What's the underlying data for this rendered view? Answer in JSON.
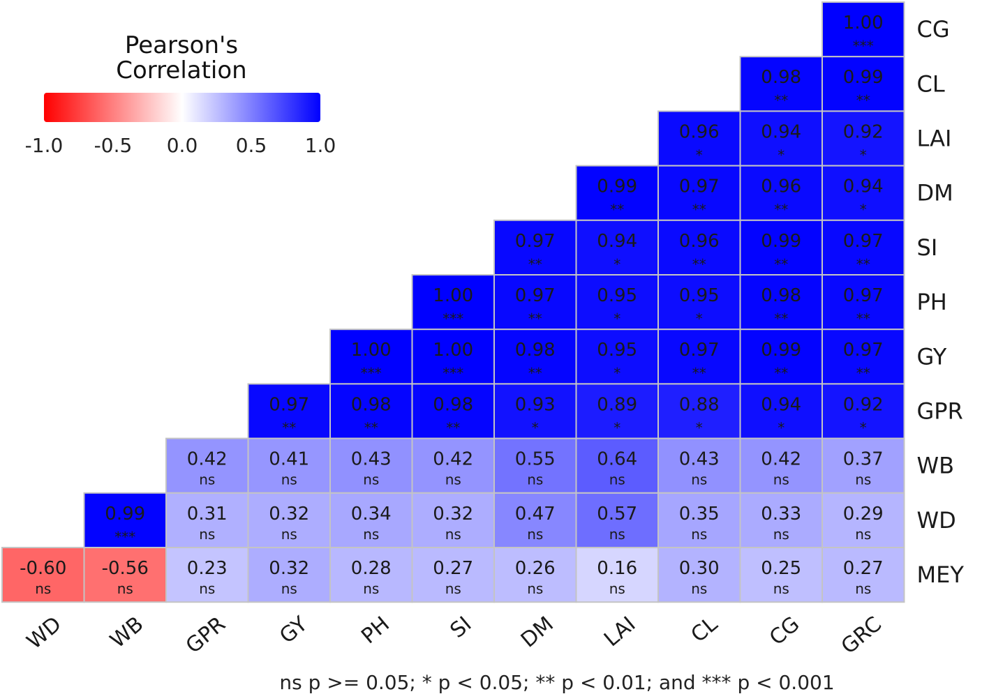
{
  "chart_data": {
    "type": "heatmap",
    "legend": {
      "title_line1": "Pearson's",
      "title_line2": "Correlation",
      "ticks": [
        "-1.0",
        "-0.5",
        "0.0",
        "0.5",
        "1.0"
      ],
      "range": [
        -1,
        1
      ],
      "colors": {
        "low": "#ff0000",
        "mid": "#ffffff",
        "high": "#0000ff"
      },
      "placement": "top-left"
    },
    "x_labels": [
      "WD",
      "WB",
      "GPR",
      "GY",
      "PH",
      "SI",
      "DM",
      "LAI",
      "CL",
      "CG",
      "GRC"
    ],
    "y_labels": [
      "CG",
      "CL",
      "LAI",
      "DM",
      "SI",
      "PH",
      "GY",
      "GPR",
      "WB",
      "WD",
      "MEY"
    ],
    "rows": [
      {
        "label": "CG",
        "start": 10,
        "values": [
          1.0
        ],
        "sig": [
          "***"
        ]
      },
      {
        "label": "CL",
        "start": 9,
        "values": [
          0.98,
          0.99
        ],
        "sig": [
          "**",
          "**"
        ]
      },
      {
        "label": "LAI",
        "start": 8,
        "values": [
          0.96,
          0.94,
          0.92
        ],
        "sig": [
          "*",
          "*",
          "*"
        ]
      },
      {
        "label": "DM",
        "start": 7,
        "values": [
          0.99,
          0.97,
          0.96,
          0.94
        ],
        "sig": [
          "**",
          "**",
          "**",
          "*"
        ]
      },
      {
        "label": "SI",
        "start": 6,
        "values": [
          0.97,
          0.94,
          0.96,
          0.99,
          0.97
        ],
        "sig": [
          "**",
          "*",
          "**",
          "**",
          "**"
        ]
      },
      {
        "label": "PH",
        "start": 5,
        "values": [
          1.0,
          0.97,
          0.95,
          0.95,
          0.98,
          0.97
        ],
        "sig": [
          "***",
          "**",
          "*",
          "*",
          "**",
          "**"
        ]
      },
      {
        "label": "GY",
        "start": 4,
        "values": [
          1.0,
          1.0,
          0.98,
          0.95,
          0.97,
          0.99,
          0.97
        ],
        "sig": [
          "***",
          "***",
          "**",
          "*",
          "**",
          "**",
          "**"
        ]
      },
      {
        "label": "GPR",
        "start": 3,
        "values": [
          0.97,
          0.98,
          0.98,
          0.93,
          0.89,
          0.88,
          0.94,
          0.92
        ],
        "sig": [
          "**",
          "**",
          "**",
          "*",
          "*",
          "*",
          "*",
          "*"
        ]
      },
      {
        "label": "WB",
        "start": 2,
        "values": [
          0.42,
          0.41,
          0.43,
          0.42,
          0.55,
          0.64,
          0.43,
          0.42,
          0.37
        ],
        "sig": [
          "ns",
          "ns",
          "ns",
          "ns",
          "ns",
          "ns",
          "ns",
          "ns",
          "ns"
        ]
      },
      {
        "label": "WD",
        "start": 1,
        "values": [
          0.99,
          0.31,
          0.32,
          0.34,
          0.32,
          0.47,
          0.57,
          0.35,
          0.33,
          0.29
        ],
        "sig": [
          "***",
          "ns",
          "ns",
          "ns",
          "ns",
          "ns",
          "ns",
          "ns",
          "ns",
          "ns"
        ]
      },
      {
        "label": "MEY",
        "start": 0,
        "values": [
          -0.6,
          -0.56,
          0.23,
          0.32,
          0.28,
          0.27,
          0.26,
          0.16,
          0.3,
          0.25,
          0.27
        ],
        "sig": [
          "ns",
          "ns",
          "ns",
          "ns",
          "ns",
          "ns",
          "ns",
          "ns",
          "ns",
          "ns",
          "ns"
        ]
      }
    ],
    "caption": "ns p >= 0.05; * p < 0.05; ** p < 0.01; and *** p < 0.001"
  }
}
